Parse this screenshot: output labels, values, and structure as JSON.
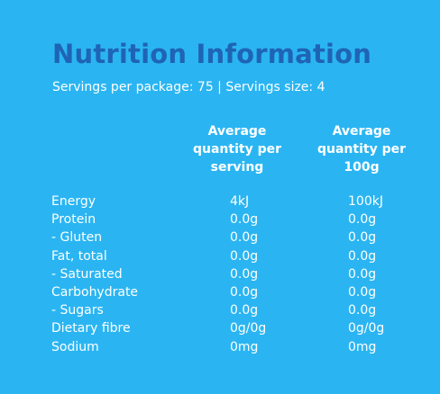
{
  "title": "Nutrition Information",
  "servings_line": "Servings per package: 75  |  Servings size: 4",
  "columns": {
    "per_serving": [
      "Average",
      "quantity per",
      "serving"
    ],
    "per_100g": [
      "Average",
      "quantity per",
      "100g"
    ]
  },
  "rows": [
    {
      "name": "Energy",
      "serving": "4kJ",
      "per100": "100kJ"
    },
    {
      "name": "Protein",
      "serving": "0.0g",
      "per100": "0.0g"
    },
    {
      "name": "- Gluten",
      "serving": "0.0g",
      "per100": "0.0g"
    },
    {
      "name": "Fat, total",
      "serving": "0.0g",
      "per100": "0.0g"
    },
    {
      "name": "- Saturated",
      "serving": "0.0g",
      "per100": "0.0g"
    },
    {
      "name": "Carbohydrate",
      "serving": "0.0g",
      "per100": "0.0g"
    },
    {
      "name": "- Sugars",
      "serving": "0.0g",
      "per100": "0.0g"
    },
    {
      "name": "Dietary fibre",
      "serving": "0g/0g",
      "per100": "0g/0g"
    },
    {
      "name": "Sodium",
      "serving": "0mg",
      "per100": "0mg"
    }
  ],
  "colors": {
    "background": "#2AB5F2",
    "title": "#1F64B4",
    "text": "#FFFFFF"
  }
}
